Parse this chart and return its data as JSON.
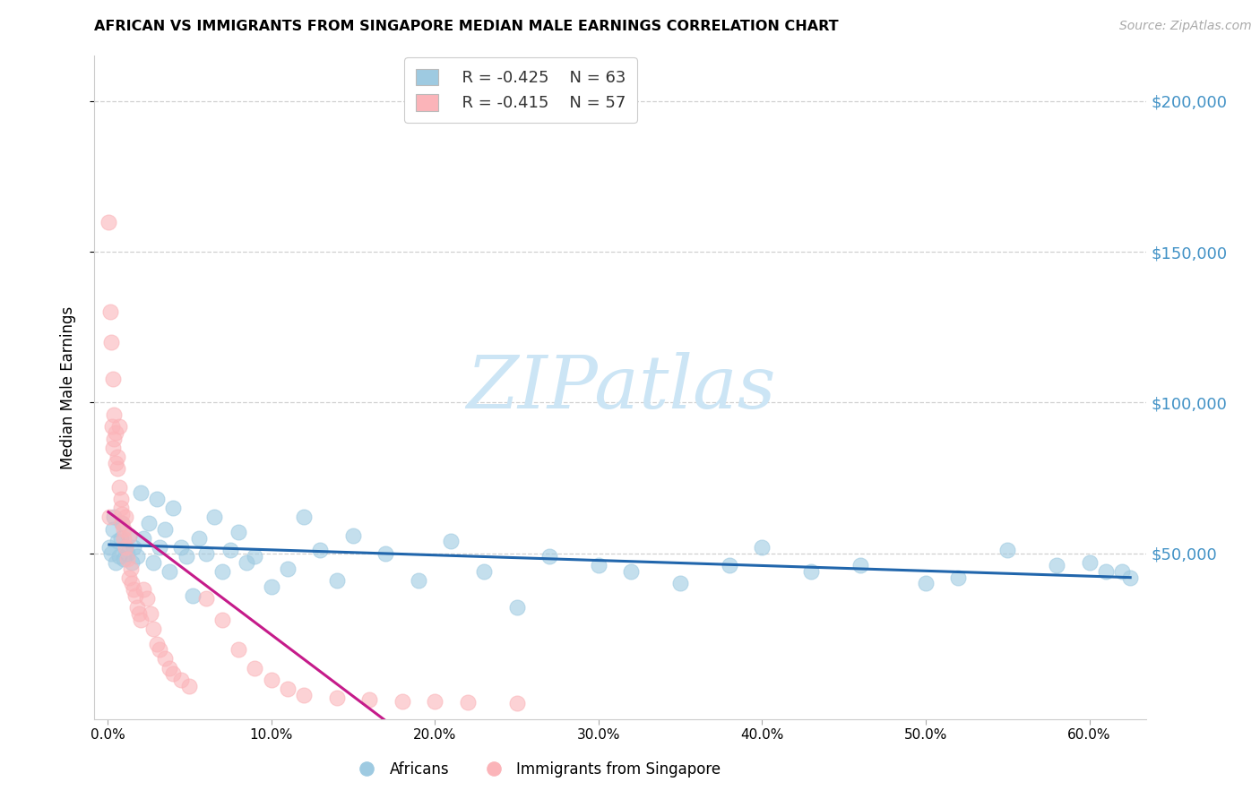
{
  "title": "AFRICAN VS IMMIGRANTS FROM SINGAPORE MEDIAN MALE EARNINGS CORRELATION CHART",
  "source": "Source: ZipAtlas.com",
  "ylabel": "Median Male Earnings",
  "xtick_labels": [
    "0.0%",
    "10.0%",
    "20.0%",
    "30.0%",
    "40.0%",
    "50.0%",
    "60.0%"
  ],
  "xtick_vals": [
    0.0,
    0.1,
    0.2,
    0.3,
    0.4,
    0.5,
    0.6
  ],
  "ytick_labels": [
    "$50,000",
    "$100,000",
    "$150,000",
    "$200,000"
  ],
  "ytick_vals": [
    50000,
    100000,
    150000,
    200000
  ],
  "right_ytick_labels": [
    "$50,000",
    "$100,000",
    "$150,000",
    "$200,000"
  ],
  "xlim": [
    -0.008,
    0.635
  ],
  "ylim": [
    -5000,
    215000
  ],
  "blue_scatter_color": "#9ecae1",
  "pink_scatter_color": "#fbb4b9",
  "blue_line_color": "#2166ac",
  "pink_line_color": "#c51b8a",
  "right_label_color": "#4292c6",
  "grid_color": "#d0d0d0",
  "watermark_color": "#cce5f5",
  "legend_R_blue": "R = -0.425",
  "legend_N_blue": "N = 63",
  "legend_R_pink": "R = -0.415",
  "legend_N_pink": "N = 57",
  "legend_label_blue": "Africans",
  "legend_label_pink": "Immigrants from Singapore",
  "africans_x": [
    0.001,
    0.002,
    0.003,
    0.004,
    0.005,
    0.006,
    0.007,
    0.008,
    0.009,
    0.01,
    0.011,
    0.012,
    0.013,
    0.015,
    0.016,
    0.018,
    0.02,
    0.022,
    0.025,
    0.028,
    0.03,
    0.032,
    0.035,
    0.038,
    0.04,
    0.045,
    0.048,
    0.052,
    0.056,
    0.06,
    0.065,
    0.07,
    0.075,
    0.08,
    0.085,
    0.09,
    0.1,
    0.11,
    0.12,
    0.13,
    0.14,
    0.15,
    0.17,
    0.19,
    0.21,
    0.23,
    0.25,
    0.27,
    0.3,
    0.32,
    0.35,
    0.38,
    0.4,
    0.43,
    0.46,
    0.5,
    0.52,
    0.55,
    0.58,
    0.6,
    0.61,
    0.62,
    0.625
  ],
  "africans_y": [
    52000,
    50000,
    58000,
    62000,
    47000,
    54000,
    49000,
    55000,
    60000,
    48000,
    52000,
    50000,
    56000,
    47000,
    52000,
    49000,
    70000,
    55000,
    60000,
    47000,
    68000,
    52000,
    58000,
    44000,
    65000,
    52000,
    49000,
    36000,
    55000,
    50000,
    62000,
    44000,
    51000,
    57000,
    47000,
    49000,
    39000,
    45000,
    62000,
    51000,
    41000,
    56000,
    50000,
    41000,
    54000,
    44000,
    32000,
    49000,
    46000,
    44000,
    40000,
    46000,
    52000,
    44000,
    46000,
    40000,
    42000,
    51000,
    46000,
    47000,
    44000,
    44000,
    42000
  ],
  "singapore_x": [
    0.0005,
    0.001,
    0.0015,
    0.002,
    0.0025,
    0.003,
    0.003,
    0.004,
    0.004,
    0.005,
    0.005,
    0.006,
    0.006,
    0.007,
    0.007,
    0.008,
    0.008,
    0.009,
    0.009,
    0.01,
    0.01,
    0.011,
    0.011,
    0.012,
    0.013,
    0.013,
    0.014,
    0.015,
    0.016,
    0.017,
    0.018,
    0.019,
    0.02,
    0.022,
    0.024,
    0.026,
    0.028,
    0.03,
    0.032,
    0.035,
    0.038,
    0.04,
    0.045,
    0.05,
    0.06,
    0.07,
    0.08,
    0.09,
    0.1,
    0.11,
    0.12,
    0.14,
    0.16,
    0.18,
    0.2,
    0.22,
    0.25
  ],
  "singapore_y": [
    160000,
    62000,
    130000,
    120000,
    92000,
    108000,
    85000,
    96000,
    88000,
    90000,
    80000,
    82000,
    78000,
    92000,
    72000,
    68000,
    65000,
    60000,
    63000,
    58000,
    55000,
    62000,
    52000,
    48000,
    56000,
    42000,
    45000,
    40000,
    38000,
    36000,
    32000,
    30000,
    28000,
    38000,
    35000,
    30000,
    25000,
    20000,
    18000,
    15000,
    12000,
    10000,
    8000,
    6000,
    35000,
    28000,
    18000,
    12000,
    8000,
    5000,
    3000,
    2000,
    1500,
    1000,
    800,
    600,
    400
  ]
}
